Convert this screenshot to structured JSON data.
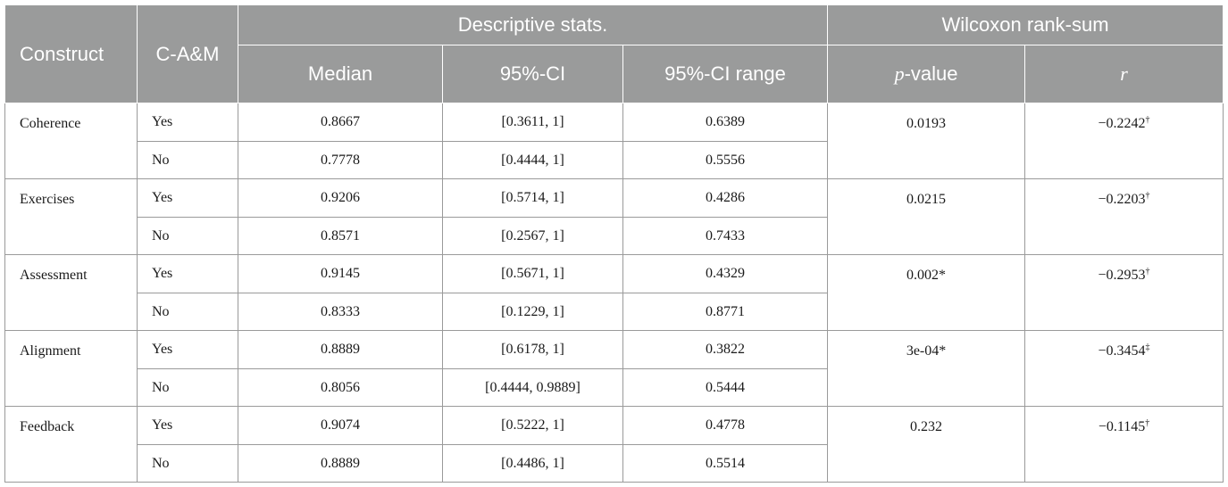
{
  "headers": {
    "construct": "Construct",
    "cam": "C-A&M",
    "descriptive": "Descriptive stats.",
    "wilcoxon": "Wilcoxon rank-sum",
    "median": "Median",
    "ci": "95%-CI",
    "ci_range": "95%-CI range",
    "p_italic": "p",
    "p_rest": "-value",
    "r": "r"
  },
  "rows": [
    {
      "construct": "Coherence",
      "p_value": "0.0193",
      "r": "−0.2242",
      "r_mark": "†",
      "yes": {
        "cam": "Yes",
        "median": "0.8667",
        "ci": "[0.3611, 1]",
        "range": "0.6389"
      },
      "no": {
        "cam": "No",
        "median": "0.7778",
        "ci": "[0.4444, 1]",
        "range": "0.5556"
      }
    },
    {
      "construct": "Exercises",
      "p_value": "0.0215",
      "r": "−0.2203",
      "r_mark": "†",
      "yes": {
        "cam": "Yes",
        "median": "0.9206",
        "ci": "[0.5714, 1]",
        "range": "0.4286"
      },
      "no": {
        "cam": "No",
        "median": "0.8571",
        "ci": "[0.2567, 1]",
        "range": "0.7433"
      }
    },
    {
      "construct": "Assessment",
      "p_value": "0.002*",
      "r": "−0.2953",
      "r_mark": "†",
      "yes": {
        "cam": "Yes",
        "median": "0.9145",
        "ci": "[0.5671, 1]",
        "range": "0.4329"
      },
      "no": {
        "cam": "No",
        "median": "0.8333",
        "ci": "[0.1229, 1]",
        "range": "0.8771"
      }
    },
    {
      "construct": "Alignment",
      "p_value": "3e-04*",
      "r": "−0.3454",
      "r_mark": "‡",
      "yes": {
        "cam": "Yes",
        "median": "0.8889",
        "ci": "[0.6178, 1]",
        "range": "0.3822"
      },
      "no": {
        "cam": "No",
        "median": "0.8056",
        "ci": "[0.4444, 0.9889]",
        "range": "0.5444"
      }
    },
    {
      "construct": "Feedback",
      "p_value": "0.232",
      "r": "−0.1145",
      "r_mark": "†",
      "yes": {
        "cam": "Yes",
        "median": "0.9074",
        "ci": "[0.5222, 1]",
        "range": "0.4778"
      },
      "no": {
        "cam": "No",
        "median": "0.8889",
        "ci": "[0.4486, 1]",
        "range": "0.5514"
      }
    }
  ]
}
